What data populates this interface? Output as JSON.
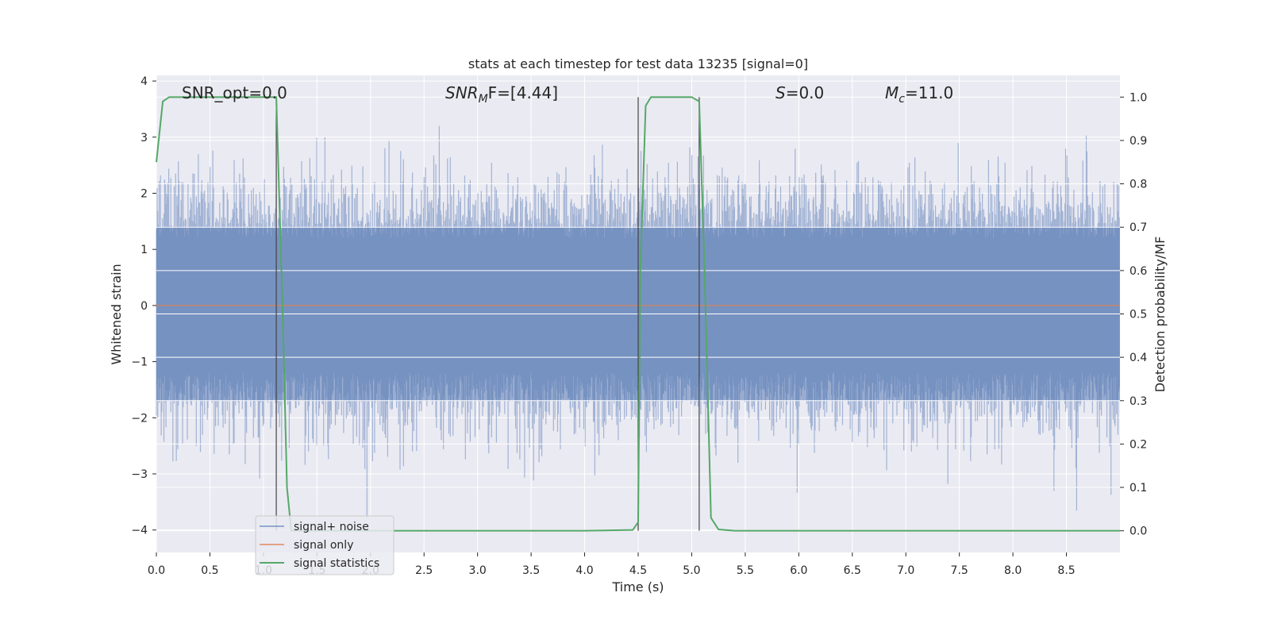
{
  "chart_data": {
    "type": "line",
    "title": "stats at each timestep for test data 13235 [signal=0]",
    "xlabel": "Time (s)",
    "ylabel_left": "Whitened strain",
    "ylabel_right": "Detection probability/MF",
    "xlim": [
      0.0,
      9.0
    ],
    "ylim_left": [
      -4.4,
      4.1
    ],
    "ylim_right": [
      -0.05,
      1.05
    ],
    "x_ticks": [
      "0.0",
      "0.5",
      "1.0",
      "1.5",
      "2.0",
      "2.5",
      "3.0",
      "3.5",
      "4.0",
      "4.5",
      "5.0",
      "5.5",
      "6.0",
      "6.5",
      "7.0",
      "7.5",
      "8.0",
      "8.5"
    ],
    "y_ticks_left": [
      "−4",
      "−3",
      "−2",
      "−1",
      "0",
      "1",
      "2",
      "3",
      "4"
    ],
    "y_ticks_right": [
      "0.0",
      "0.1",
      "0.2",
      "0.3",
      "0.4",
      "0.5",
      "0.6",
      "0.7",
      "0.8",
      "0.9",
      "1.0"
    ],
    "grid": true,
    "annotations": {
      "snr_opt": "SNR_opt=0.0",
      "snr_mf_sym": "SNR",
      "snr_mf_sub": "M",
      "snr_mf_rest": "F=[4.44]",
      "s_sym": "S",
      "s_rest": "=0.0",
      "mc_sym": "M",
      "mc_sub": "c",
      "mc_rest": "=11.0"
    },
    "vertical_markers_x": [
      1.12,
      4.5,
      5.07
    ],
    "series": [
      {
        "name": "signal+ noise",
        "color": "#4c72b0",
        "axis": "left",
        "description_values": {
          "typical_range": [
            -2.2,
            2.2
          ],
          "max": 3.2,
          "min": -3.8,
          "duration": 9.0
        }
      },
      {
        "name": "signal only",
        "color": "#dd8452",
        "axis": "left",
        "x": [
          0.0,
          9.0
        ],
        "y": [
          0.0,
          0.0
        ]
      },
      {
        "name": "signal statistics",
        "color": "#55a868",
        "axis": "right",
        "x": [
          0.0,
          0.06,
          0.12,
          0.3,
          0.6,
          0.9,
          1.12,
          1.18,
          1.22,
          1.26,
          1.5,
          2.0,
          3.0,
          4.0,
          4.45,
          4.5,
          4.52,
          4.57,
          4.62,
          4.8,
          5.0,
          5.07,
          5.12,
          5.18,
          5.25,
          5.4,
          6.0,
          7.0,
          8.0,
          9.0
        ],
        "y": [
          0.85,
          0.99,
          1.0,
          1.0,
          1.0,
          1.0,
          1.0,
          0.5,
          0.1,
          0.0,
          0.0,
          0.0,
          0.0,
          0.0,
          0.002,
          0.02,
          0.6,
          0.98,
          1.0,
          1.0,
          1.0,
          0.99,
          0.6,
          0.03,
          0.003,
          0.0,
          0.0,
          0.0,
          0.0,
          0.0
        ]
      }
    ]
  },
  "legend": {
    "items": [
      "signal+ noise",
      "signal only",
      "signal statistics"
    ]
  }
}
